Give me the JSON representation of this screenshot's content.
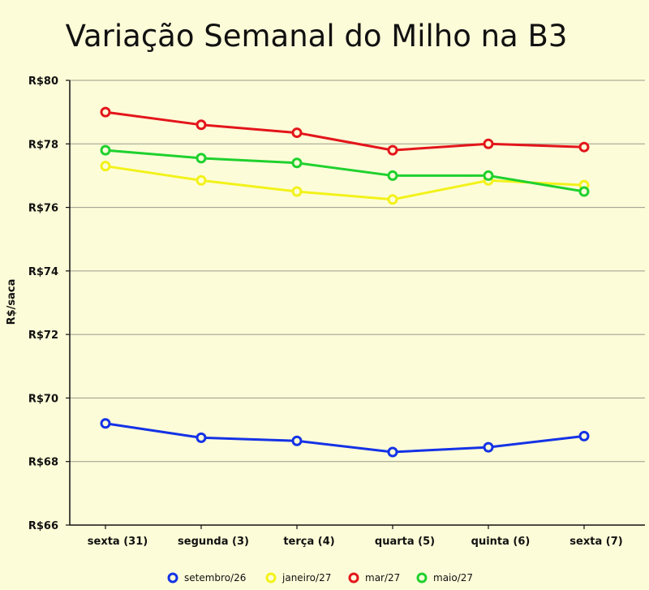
{
  "chart_data": {
    "type": "line",
    "title": "Variação Semanal do Milho na B3",
    "xlabel": "",
    "ylabel": "R$/saca",
    "categories": [
      "sexta (31)",
      "segunda (3)",
      "terça (4)",
      "quarta (5)",
      "quinta (6)",
      "sexta (7)"
    ],
    "ylim": [
      66,
      80
    ],
    "yticks": [
      66,
      68,
      70,
      72,
      74,
      76,
      78,
      80
    ],
    "ytick_labels": [
      "R$66",
      "R$68",
      "R$70",
      "R$72",
      "R$74",
      "R$76",
      "R$78",
      "R$80"
    ],
    "grid": "horizontal",
    "legend_position": "bottom",
    "series": [
      {
        "name": "setembro/26",
        "color": "#1432e6",
        "values": [
          69.2,
          68.75,
          68.65,
          68.3,
          68.45,
          68.8
        ]
      },
      {
        "name": "janeiro/27",
        "color": "#f2f21a",
        "values": [
          77.3,
          76.85,
          76.5,
          76.25,
          76.85,
          76.7
        ]
      },
      {
        "name": "mar/27",
        "color": "#e3151b",
        "values": [
          79.0,
          78.6,
          78.35,
          77.8,
          78.0,
          77.9
        ]
      },
      {
        "name": "maio/27",
        "color": "#1fd12e",
        "values": [
          77.8,
          77.55,
          77.4,
          77.0,
          77.0,
          76.5
        ]
      }
    ]
  }
}
